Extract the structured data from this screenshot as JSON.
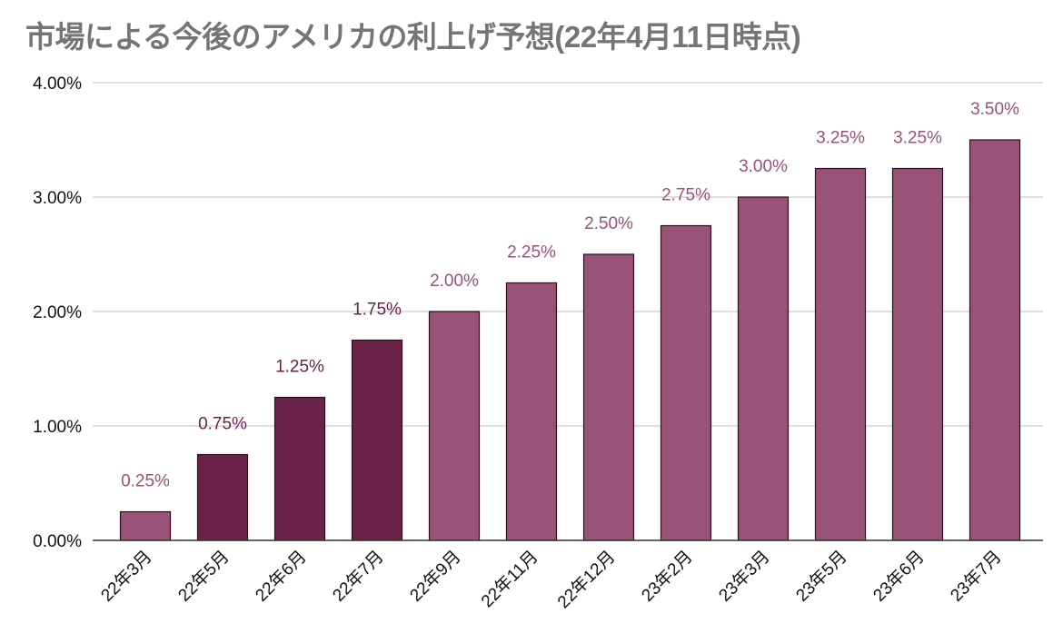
{
  "chart_data": {
    "type": "bar",
    "title": "市場による今後のアメリカの利上げ予想(22年4月11日時点)",
    "xlabel": "",
    "ylabel": "",
    "categories": [
      "22年3月",
      "22年5月",
      "22年6月",
      "22年7月",
      "22年9月",
      "22年11月",
      "22年12月",
      "23年2月",
      "23年3月",
      "23年5月",
      "23年6月",
      "23年7月"
    ],
    "values": [
      0.25,
      0.75,
      1.25,
      1.75,
      2.0,
      2.25,
      2.5,
      2.75,
      3.0,
      3.25,
      3.25,
      3.5
    ],
    "data_labels": [
      "0.25%",
      "0.75%",
      "1.25%",
      "1.75%",
      "2.00%",
      "2.25%",
      "2.50%",
      "2.75%",
      "3.00%",
      "3.25%",
      "3.25%",
      "3.50%"
    ],
    "bar_colors": [
      "#995278",
      "#6b2249",
      "#6b2249",
      "#6b2249",
      "#995278",
      "#995278",
      "#995278",
      "#995278",
      "#995278",
      "#995278",
      "#995278",
      "#995278"
    ],
    "ylim": [
      0,
      4
    ],
    "yticks": [
      0,
      1,
      2,
      3,
      4
    ],
    "ytick_labels": [
      "0.00%",
      "1.00%",
      "2.00%",
      "3.00%",
      "4.00%"
    ],
    "grid": true,
    "legend": "none"
  }
}
